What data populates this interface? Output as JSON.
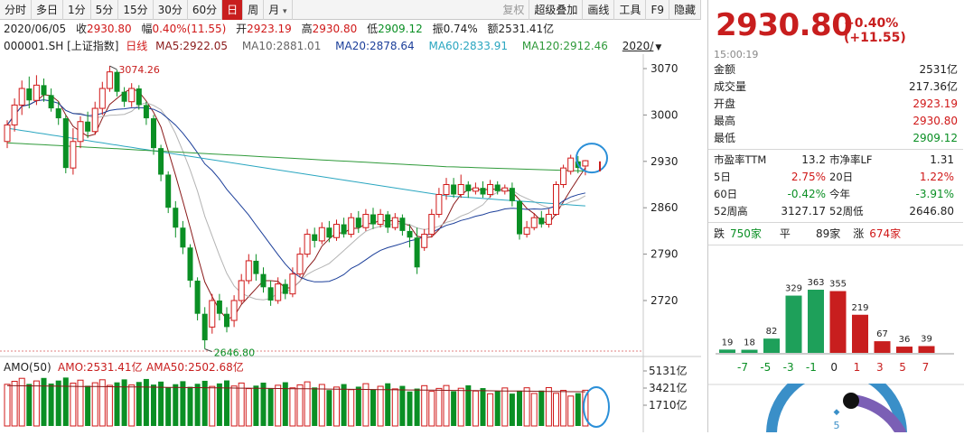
{
  "toolbar": {
    "tabs": [
      "分时",
      "多日",
      "1分",
      "5分",
      "15分",
      "30分",
      "60分",
      "日",
      "周",
      "月"
    ],
    "more_caret": "▾",
    "right_items": [
      "复权",
      "超级叠加",
      "画线",
      "工具",
      "F9",
      "隐藏"
    ],
    "active_tab": "日"
  },
  "quote_bar": {
    "date": "2020/06/05",
    "close_label": "收",
    "close": "2930.80",
    "amp_label": "幅",
    "amp": "0.40%(11.55)",
    "open_label": "开",
    "open": "2923.19",
    "high_label": "高",
    "high": "2930.80",
    "low_label": "低",
    "low": "2909.12",
    "swing_label": "振",
    "swing": "0.74%",
    "amount_label": "额",
    "amount": "2531.41亿"
  },
  "ma_bar": {
    "code": "000001.SH [上证指数]",
    "period": "日线",
    "ma5": "MA5:2922.05",
    "ma10": "MA10:2881.01",
    "ma20": "MA20:2878.64",
    "ma60": "MA60:2833.91",
    "ma120": "MA120:2912.46",
    "date_dropdown": "2020/"
  },
  "colors": {
    "up": "#d01818",
    "down": "#0a8f24",
    "ma5": "#8a1a1a",
    "ma10": "#b4b4b4",
    "ma20": "#1c3f9a",
    "ma60": "#2aa6c0",
    "ma120": "#2f9a3a"
  },
  "price_axis": {
    "ticks": [
      "3070",
      "3000",
      "2930",
      "2860",
      "2790",
      "2720"
    ]
  },
  "annotations": {
    "high_label": "3074.26",
    "low_label": "2646.80"
  },
  "volume": {
    "label": "AMO(50)",
    "amo": "AMO:2531.41亿",
    "ama50": "AMA50:2502.68亿",
    "ticks": [
      "5131亿",
      "3421亿",
      "1710亿"
    ]
  },
  "right": {
    "price": "2930.80",
    "change": "+0.40% (+11.55)",
    "time": "15:00:19",
    "stats": [
      {
        "k": "金额",
        "v": "2531亿",
        "c": "#222"
      },
      {
        "k": "成交量",
        "v": "217.36亿",
        "c": "#222"
      },
      {
        "k": "开盘",
        "v": "2923.19",
        "c": "#d01818"
      },
      {
        "k": "最高",
        "v": "2930.80",
        "c": "#d01818"
      },
      {
        "k": "最低",
        "v": "2909.12",
        "c": "#0a8f24"
      }
    ],
    "grid": [
      [
        "市盈率TTM",
        "13.2",
        "市净率LF",
        "1.31"
      ],
      [
        "5日",
        "2.75%",
        "20日",
        "1.22%"
      ],
      [
        "60日",
        "-0.42%",
        "今年",
        "-3.91%"
      ],
      [
        "52周高",
        "3127.17",
        "52周低",
        "2646.80"
      ]
    ],
    "updown": {
      "down_label": "跌",
      "down": "750家",
      "flat_label": "平",
      "flat": "89家",
      "up_label": "涨",
      "up": "674家"
    },
    "distribution": {
      "labels": [
        "-7",
        "-5",
        "-3",
        "-1",
        "0",
        "1",
        "3",
        "5",
        "7"
      ],
      "values": [
        19,
        18,
        82,
        329,
        363,
        355,
        219,
        67,
        36,
        39
      ]
    },
    "gauge": {
      "value": "5"
    }
  }
}
